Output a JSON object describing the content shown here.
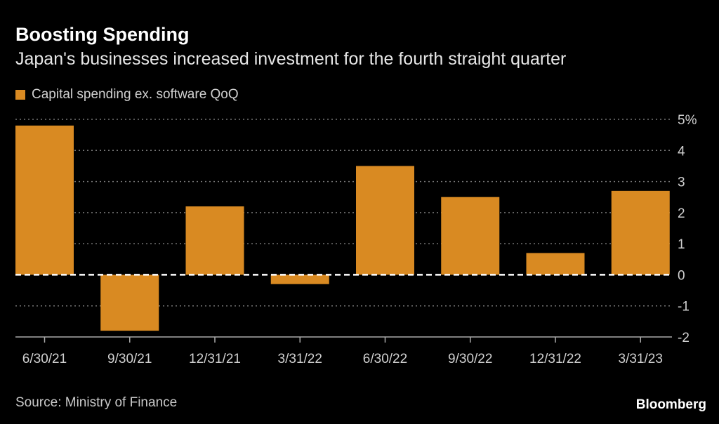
{
  "header": {
    "title": "Boosting Spending",
    "subtitle": "Japan's businesses increased investment for the fourth straight quarter"
  },
  "footer": {
    "source": "Source: Ministry of Finance",
    "logo": "Bloomberg"
  },
  "colors": {
    "bar": "#d98a22",
    "background": "#000000"
  },
  "chart_data": {
    "type": "bar",
    "title": "Boosting Spending",
    "subtitle": "Japan's businesses increased investment for the fourth straight quarter",
    "legend": [
      "Capital spending ex. software QoQ"
    ],
    "legend_position": "top-left",
    "categories": [
      "6/30/21",
      "9/30/21",
      "12/31/21",
      "3/31/22",
      "6/30/22",
      "9/30/22",
      "12/31/22",
      "3/31/23"
    ],
    "series": [
      {
        "name": "Capital spending ex. software QoQ",
        "values": [
          4.8,
          -1.8,
          2.2,
          -0.3,
          3.5,
          2.5,
          0.7,
          2.7
        ]
      }
    ],
    "ylim": [
      -2,
      5
    ],
    "yticks": [
      -2,
      -1,
      0,
      1,
      2,
      3,
      4,
      5
    ],
    "ytick_labels": [
      "-2",
      "-1",
      "0",
      "1",
      "2",
      "3",
      "4",
      "5%"
    ],
    "grid": true,
    "y_axis_side": "right"
  }
}
